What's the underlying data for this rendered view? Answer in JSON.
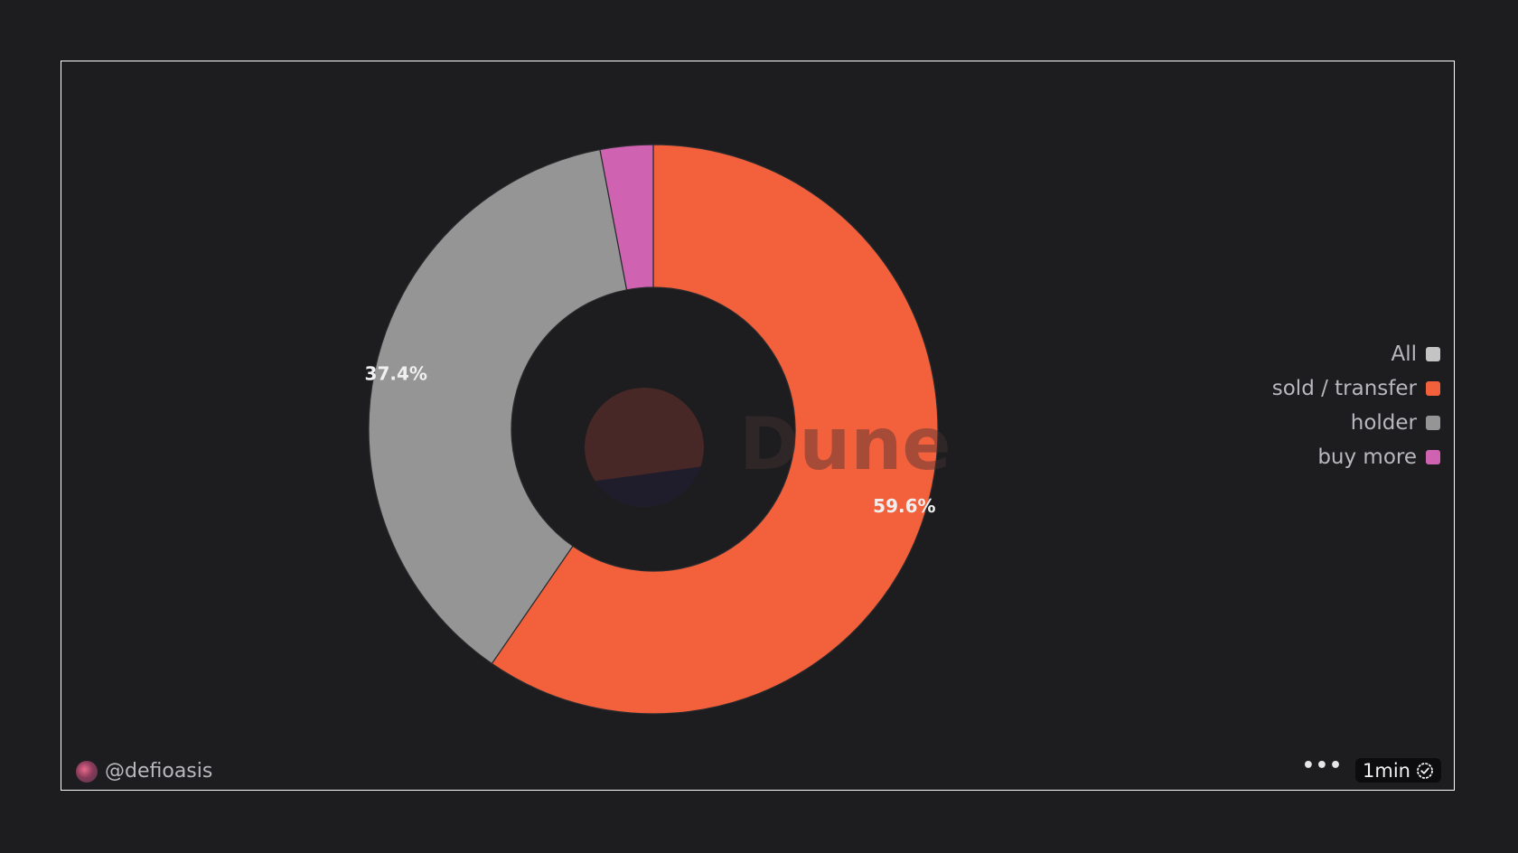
{
  "chart_data": {
    "type": "pie",
    "style": "donut",
    "categories": [
      "sold / transfer",
      "holder",
      "buy more"
    ],
    "values": [
      59.6,
      37.4,
      3.0
    ],
    "data_labels": [
      "59.6%",
      "37.4%",
      ""
    ],
    "colors": [
      "#f2603c",
      "#959595",
      "#cf62b1"
    ],
    "legend_position": "right"
  },
  "legend": {
    "items": [
      {
        "label": "All",
        "color": "#c4c4c4"
      },
      {
        "label": "sold / transfer",
        "color": "#f2603c"
      },
      {
        "label": "holder",
        "color": "#959595"
      },
      {
        "label": "buy more",
        "color": "#cf62b1"
      }
    ]
  },
  "watermark": {
    "text": "Dune"
  },
  "footer": {
    "author": "@defioasis",
    "more_label": "•••",
    "refresh_label": "1min",
    "refresh_icon": "check-circle-icon"
  }
}
